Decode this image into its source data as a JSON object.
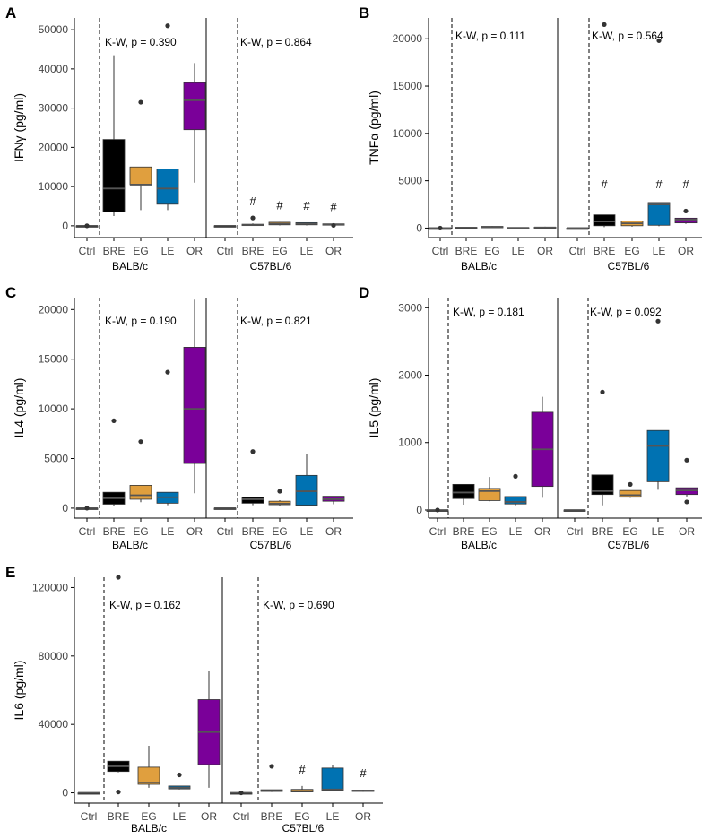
{
  "figure": {
    "type": "box",
    "shared": {
      "groups": [
        "BALB/c",
        "C57BL/6"
      ],
      "categories": [
        "Ctrl",
        "BRE",
        "EG",
        "LE",
        "OR"
      ],
      "category_colors": {
        "Ctrl": "#000000",
        "BRE": "#000000",
        "EG": "#E09F3E",
        "LE": "#0072B2",
        "OR": "#7A0099"
      },
      "significance_marker": "#"
    }
  },
  "chart_data": [
    {
      "type": "box",
      "panel_label": "A",
      "ylabel": "IFNγ (pg/ml)",
      "ylim": [
        -3000,
        53000
      ],
      "yticks": [
        0,
        10000,
        20000,
        30000,
        40000,
        50000
      ],
      "group_labels": [
        "BALB/c",
        "C57BL/6"
      ],
      "annotations": [
        "K-W, p = 0.390",
        "K-W, p = 0.864"
      ],
      "series": [
        {
          "group": "BALB/c",
          "category": "Ctrl",
          "min": 0,
          "q1": 0,
          "median": 0,
          "q3": 0,
          "max": 0,
          "outliers": [
            0
          ],
          "sig": false
        },
        {
          "group": "BALB/c",
          "category": "BRE",
          "min": 2500,
          "q1": 3500,
          "median": 9500,
          "q3": 22000,
          "max": 43500,
          "outliers": [],
          "sig": false
        },
        {
          "group": "BALB/c",
          "category": "EG",
          "min": 4000,
          "q1": 10500,
          "median": 10500,
          "q3": 15000,
          "max": 15000,
          "outliers": [
            31500
          ],
          "sig": false
        },
        {
          "group": "BALB/c",
          "category": "LE",
          "min": 4000,
          "q1": 5500,
          "median": 9500,
          "q3": 14500,
          "max": 14500,
          "outliers": [
            51000
          ],
          "sig": false
        },
        {
          "group": "BALB/c",
          "category": "OR",
          "min": 11000,
          "q1": 24500,
          "median": 32000,
          "q3": 36500,
          "max": 41500,
          "outliers": [],
          "sig": false
        },
        {
          "group": "C57BL/6",
          "category": "Ctrl",
          "min": 0,
          "q1": 0,
          "median": 0,
          "q3": 0,
          "max": 0,
          "outliers": [],
          "sig": false
        },
        {
          "group": "C57BL/6",
          "category": "BRE",
          "min": 0,
          "q1": 100,
          "median": 200,
          "q3": 400,
          "max": 600,
          "outliers": [
            2000
          ],
          "sig": true
        },
        {
          "group": "C57BL/6",
          "category": "EG",
          "min": 100,
          "q1": 250,
          "median": 500,
          "q3": 900,
          "max": 1000,
          "outliers": [],
          "sig": true
        },
        {
          "group": "C57BL/6",
          "category": "LE",
          "min": 100,
          "q1": 250,
          "median": 500,
          "q3": 800,
          "max": 900,
          "outliers": [],
          "sig": true
        },
        {
          "group": "C57BL/6",
          "category": "OR",
          "min": 0,
          "q1": 150,
          "median": 300,
          "q3": 500,
          "max": 600,
          "outliers": [
            100
          ],
          "sig": true
        }
      ]
    },
    {
      "type": "box",
      "panel_label": "B",
      "ylabel": "TNFα (pg/ml)",
      "ylim": [
        -1000,
        22200
      ],
      "yticks": [
        0,
        5000,
        10000,
        15000,
        20000
      ],
      "group_labels": [
        "BALB/c",
        "C57BL/6"
      ],
      "annotations": [
        "K-W, p = 0.111",
        "K-W, p = 0.564"
      ],
      "series": [
        {
          "group": "BALB/c",
          "category": "Ctrl",
          "min": 0,
          "q1": 0,
          "median": 0,
          "q3": 0,
          "max": 0,
          "outliers": [
            0
          ],
          "sig": false
        },
        {
          "group": "BALB/c",
          "category": "BRE",
          "min": 0,
          "q1": 20,
          "median": 50,
          "q3": 80,
          "max": 120,
          "outliers": [],
          "sig": false
        },
        {
          "group": "BALB/c",
          "category": "EG",
          "min": 40,
          "q1": 70,
          "median": 120,
          "q3": 180,
          "max": 220,
          "outliers": [],
          "sig": false
        },
        {
          "group": "BALB/c",
          "category": "LE",
          "min": 0,
          "q1": 10,
          "median": 30,
          "q3": 50,
          "max": 70,
          "outliers": [],
          "sig": false
        },
        {
          "group": "BALB/c",
          "category": "OR",
          "min": 0,
          "q1": 20,
          "median": 60,
          "q3": 100,
          "max": 150,
          "outliers": [],
          "sig": false
        },
        {
          "group": "C57BL/6",
          "category": "Ctrl",
          "min": 0,
          "q1": 0,
          "median": 0,
          "q3": 0,
          "max": 0,
          "outliers": [],
          "sig": false
        },
        {
          "group": "C57BL/6",
          "category": "BRE",
          "min": 100,
          "q1": 250,
          "median": 700,
          "q3": 1400,
          "max": 1400,
          "outliers": [
            21500
          ],
          "sig": true
        },
        {
          "group": "C57BL/6",
          "category": "EG",
          "min": 150,
          "q1": 250,
          "median": 500,
          "q3": 750,
          "max": 750,
          "outliers": [],
          "sig": false
        },
        {
          "group": "C57BL/6",
          "category": "LE",
          "min": 200,
          "q1": 300,
          "median": 2500,
          "q3": 2700,
          "max": 2700,
          "outliers": [
            19800
          ],
          "sig": true
        },
        {
          "group": "C57BL/6",
          "category": "OR",
          "min": 450,
          "q1": 550,
          "median": 900,
          "q3": 1050,
          "max": 1050,
          "outliers": [
            1800
          ],
          "sig": true
        }
      ]
    },
    {
      "type": "box",
      "panel_label": "C",
      "ylabel": "IL4 (pg/ml)",
      "ylim": [
        -1000,
        21200
      ],
      "yticks": [
        0,
        5000,
        10000,
        15000,
        20000
      ],
      "group_labels": [
        "BALB/c",
        "C57BL/6"
      ],
      "annotations": [
        "K-W, p = 0.190",
        "K-W, p = 0.821"
      ],
      "series": [
        {
          "group": "BALB/c",
          "category": "Ctrl",
          "min": 0,
          "q1": 0,
          "median": 0,
          "q3": 0,
          "max": 0,
          "outliers": [
            0
          ],
          "sig": false
        },
        {
          "group": "BALB/c",
          "category": "BRE",
          "min": 200,
          "q1": 400,
          "median": 1000,
          "q3": 1600,
          "max": 1600,
          "outliers": [
            8800
          ],
          "sig": false
        },
        {
          "group": "BALB/c",
          "category": "EG",
          "min": 600,
          "q1": 900,
          "median": 1300,
          "q3": 2300,
          "max": 2300,
          "outliers": [
            6700
          ],
          "sig": false
        },
        {
          "group": "BALB/c",
          "category": "LE",
          "min": 300,
          "q1": 500,
          "median": 1100,
          "q3": 1600,
          "max": 1600,
          "outliers": [
            13700
          ],
          "sig": false
        },
        {
          "group": "BALB/c",
          "category": "OR",
          "min": 1500,
          "q1": 4500,
          "median": 10000,
          "q3": 16200,
          "max": 21000,
          "outliers": [],
          "sig": false
        },
        {
          "group": "C57BL/6",
          "category": "Ctrl",
          "min": 0,
          "q1": 0,
          "median": 0,
          "q3": 0,
          "max": 0,
          "outliers": [],
          "sig": false
        },
        {
          "group": "C57BL/6",
          "category": "BRE",
          "min": 300,
          "q1": 500,
          "median": 900,
          "q3": 1100,
          "max": 1100,
          "outliers": [
            5700
          ],
          "sig": false
        },
        {
          "group": "C57BL/6",
          "category": "EG",
          "min": 250,
          "q1": 350,
          "median": 450,
          "q3": 700,
          "max": 800,
          "outliers": [
            1700
          ],
          "sig": false
        },
        {
          "group": "C57BL/6",
          "category": "LE",
          "min": 200,
          "q1": 300,
          "median": 1700,
          "q3": 3300,
          "max": 5500,
          "outliers": [],
          "sig": false
        },
        {
          "group": "C57BL/6",
          "category": "OR",
          "min": 400,
          "q1": 700,
          "median": 900,
          "q3": 1200,
          "max": 1200,
          "outliers": [],
          "sig": false
        }
      ]
    },
    {
      "type": "box",
      "panel_label": "D",
      "ylabel": "IL5 (pg/ml)",
      "ylim": [
        -120,
        3150
      ],
      "yticks": [
        0,
        1000,
        2000,
        3000
      ],
      "group_labels": [
        "BALB/c",
        "C57BL/6"
      ],
      "annotations": [
        "K-W, p = 0.181",
        "K-W, p = 0.092"
      ],
      "series": [
        {
          "group": "BALB/c",
          "category": "Ctrl",
          "min": 0,
          "q1": 0,
          "median": 0,
          "q3": 0,
          "max": 0,
          "outliers": [
            0
          ],
          "sig": false
        },
        {
          "group": "BALB/c",
          "category": "BRE",
          "min": 80,
          "q1": 170,
          "median": 260,
          "q3": 380,
          "max": 380,
          "outliers": [],
          "sig": false
        },
        {
          "group": "BALB/c",
          "category": "EG",
          "min": 130,
          "q1": 140,
          "median": 280,
          "q3": 320,
          "max": 490,
          "outliers": [],
          "sig": false
        },
        {
          "group": "BALB/c",
          "category": "LE",
          "min": 70,
          "q1": 90,
          "median": 120,
          "q3": 200,
          "max": 200,
          "outliers": [
            500
          ],
          "sig": false
        },
        {
          "group": "BALB/c",
          "category": "OR",
          "min": 180,
          "q1": 350,
          "median": 900,
          "q3": 1450,
          "max": 1680,
          "outliers": [],
          "sig": false
        },
        {
          "group": "C57BL/6",
          "category": "Ctrl",
          "min": 0,
          "q1": 0,
          "median": 0,
          "q3": 0,
          "max": 0,
          "outliers": [],
          "sig": false
        },
        {
          "group": "C57BL/6",
          "category": "BRE",
          "min": 70,
          "q1": 230,
          "median": 280,
          "q3": 520,
          "max": 520,
          "outliers": [
            1750
          ],
          "sig": false
        },
        {
          "group": "C57BL/6",
          "category": "EG",
          "min": 180,
          "q1": 190,
          "median": 220,
          "q3": 290,
          "max": 290,
          "outliers": [
            380
          ],
          "sig": false
        },
        {
          "group": "C57BL/6",
          "category": "LE",
          "min": 300,
          "q1": 420,
          "median": 950,
          "q3": 1180,
          "max": 1180,
          "outliers": [
            2800
          ],
          "sig": false
        },
        {
          "group": "C57BL/6",
          "category": "OR",
          "min": 200,
          "q1": 230,
          "median": 290,
          "q3": 330,
          "max": 330,
          "outliers": [
            740,
            120
          ],
          "sig": false
        }
      ]
    },
    {
      "type": "box",
      "panel_label": "E",
      "ylabel": "IL6 (pg/ml)",
      "ylim": [
        -6000,
        126000
      ],
      "yticks": [
        0,
        40000,
        80000,
        120000
      ],
      "group_labels": [
        "BALB/c",
        "C57BL/6"
      ],
      "annotations": [
        "K-W, p = 0.162",
        "K-W, p = 0.690"
      ],
      "series": [
        {
          "group": "BALB/c",
          "category": "Ctrl",
          "min": 0,
          "q1": 0,
          "median": 0,
          "q3": 0,
          "max": 0,
          "outliers": [],
          "sig": false
        },
        {
          "group": "BALB/c",
          "category": "BRE",
          "min": 12000,
          "q1": 12500,
          "median": 15500,
          "q3": 18500,
          "max": 18500,
          "outliers": [
            126000,
            500
          ],
          "sig": false
        },
        {
          "group": "BALB/c",
          "category": "EG",
          "min": 3000,
          "q1": 5000,
          "median": 6000,
          "q3": 15000,
          "max": 27500,
          "outliers": [],
          "sig": false
        },
        {
          "group": "BALB/c",
          "category": "LE",
          "min": 2000,
          "q1": 2300,
          "median": 3000,
          "q3": 4000,
          "max": 4000,
          "outliers": [
            10500
          ],
          "sig": false
        },
        {
          "group": "BALB/c",
          "category": "OR",
          "min": 3000,
          "q1": 16500,
          "median": 35500,
          "q3": 54500,
          "max": 71000,
          "outliers": [],
          "sig": false
        },
        {
          "group": "C57BL/6",
          "category": "Ctrl",
          "min": 0,
          "q1": 0,
          "median": 0,
          "q3": 0,
          "max": 0,
          "outliers": [
            0
          ],
          "sig": false
        },
        {
          "group": "C57BL/6",
          "category": "BRE",
          "min": 500,
          "q1": 800,
          "median": 1200,
          "q3": 1800,
          "max": 1800,
          "outliers": [
            15500
          ],
          "sig": false
        },
        {
          "group": "C57BL/6",
          "category": "EG",
          "min": 300,
          "q1": 500,
          "median": 1000,
          "q3": 2000,
          "max": 4000,
          "outliers": [],
          "sig": true
        },
        {
          "group": "C57BL/6",
          "category": "LE",
          "min": 1000,
          "q1": 1500,
          "median": 2000,
          "q3": 14500,
          "max": 16500,
          "outliers": [],
          "sig": false
        },
        {
          "group": "C57BL/6",
          "category": "OR",
          "min": 600,
          "q1": 900,
          "median": 1200,
          "q3": 1600,
          "max": 1800,
          "outliers": [],
          "sig": true
        }
      ]
    }
  ]
}
